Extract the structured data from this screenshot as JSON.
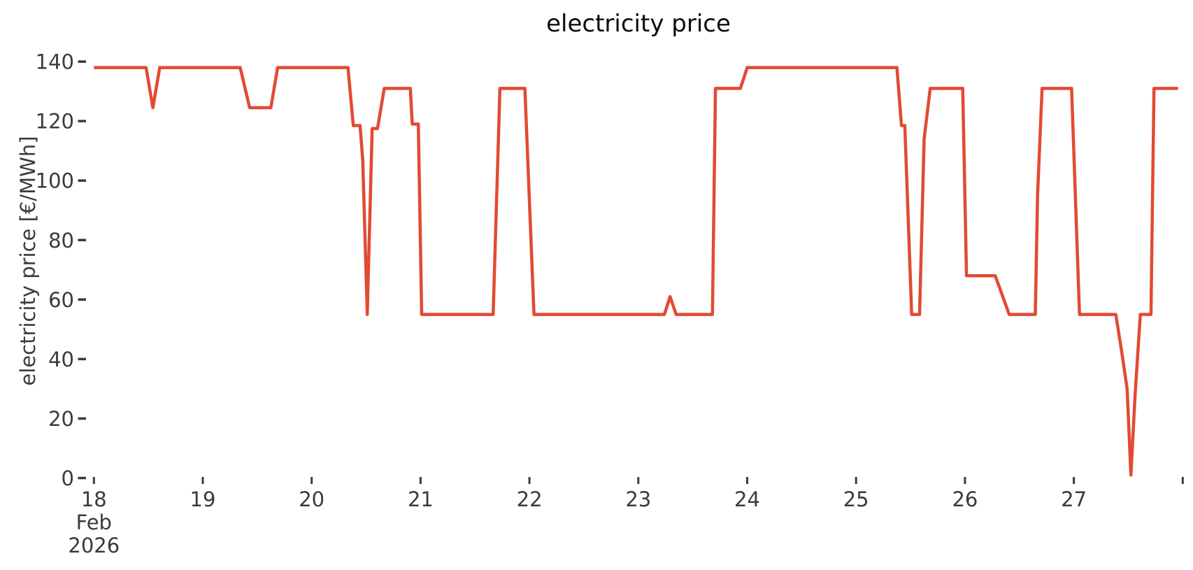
{
  "title": "electricity price",
  "y_axis": {
    "label": "electricity price [€/MWh]",
    "ticks": [
      0,
      20,
      40,
      60,
      80,
      100,
      120,
      140
    ]
  },
  "x_axis": {
    "ticks": [
      {
        "day": 0,
        "label": "18",
        "sub": [
          "Feb",
          "2026"
        ]
      },
      {
        "day": 1,
        "label": "19",
        "sub": []
      },
      {
        "day": 2,
        "label": "20",
        "sub": []
      },
      {
        "day": 3,
        "label": "21",
        "sub": []
      },
      {
        "day": 4,
        "label": "22",
        "sub": []
      },
      {
        "day": 5,
        "label": "23",
        "sub": []
      },
      {
        "day": 6,
        "label": "24",
        "sub": []
      },
      {
        "day": 7,
        "label": "25",
        "sub": []
      },
      {
        "day": 8,
        "label": "26",
        "sub": []
      },
      {
        "day": 9,
        "label": "27",
        "sub": []
      },
      {
        "day": 10,
        "label": "",
        "sub": []
      }
    ]
  },
  "colors": {
    "line": "#E24A33",
    "tick_text": "#3b3b3b",
    "title_text": "#0c0c0c",
    "background": "#ffffff"
  },
  "chart_data": {
    "type": "line",
    "title": "electricity price",
    "xlabel": "",
    "ylabel": "electricity price [€/MWh]",
    "ylim": [
      0,
      140
    ],
    "x_range": [
      "2026-02-18T00:00",
      "2026-02-28T00:00"
    ],
    "grid": false,
    "legend": "none",
    "line_color": "#E24A33",
    "points": [
      [
        "2026-02-18T00:00",
        138
      ],
      [
        "2026-02-18T11:30",
        138
      ],
      [
        "2026-02-18T13:00",
        124.5
      ],
      [
        "2026-02-18T14:30",
        138
      ],
      [
        "2026-02-19T08:15",
        138
      ],
      [
        "2026-02-19T10:20",
        124.5
      ],
      [
        "2026-02-19T15:00",
        124.5
      ],
      [
        "2026-02-19T16:30",
        138
      ],
      [
        "2026-02-20T08:00",
        138
      ],
      [
        "2026-02-20T09:10",
        118.5
      ],
      [
        "2026-02-20T10:40",
        118.5
      ],
      [
        "2026-02-20T11:15",
        107
      ],
      [
        "2026-02-20T12:15",
        55
      ],
      [
        "2026-02-20T13:20",
        117.5
      ],
      [
        "2026-02-20T14:30",
        117.5
      ],
      [
        "2026-02-20T16:00",
        131
      ],
      [
        "2026-02-20T21:45",
        131
      ],
      [
        "2026-02-20T22:10",
        119
      ],
      [
        "2026-02-20T23:30",
        119
      ],
      [
        "2026-02-21T00:15",
        55
      ],
      [
        "2026-02-21T16:00",
        55
      ],
      [
        "2026-02-21T17:30",
        131
      ],
      [
        "2026-02-21T23:00",
        131
      ],
      [
        "2026-02-22T01:00",
        55
      ],
      [
        "2026-02-23T05:45",
        55
      ],
      [
        "2026-02-23T07:00",
        61
      ],
      [
        "2026-02-23T08:20",
        55
      ],
      [
        "2026-02-23T16:20",
        55
      ],
      [
        "2026-02-23T17:00",
        131
      ],
      [
        "2026-02-23T22:30",
        131
      ],
      [
        "2026-02-24T00:00",
        138
      ],
      [
        "2026-02-25T09:00",
        138
      ],
      [
        "2026-02-25T10:00",
        118.5
      ],
      [
        "2026-02-25T10:45",
        118.5
      ],
      [
        "2026-02-25T12:15",
        55
      ],
      [
        "2026-02-25T14:00",
        55
      ],
      [
        "2026-02-25T15:00",
        114
      ],
      [
        "2026-02-25T16:20",
        131
      ],
      [
        "2026-02-25T23:30",
        131
      ],
      [
        "2026-02-26T00:20",
        68
      ],
      [
        "2026-02-26T06:40",
        68
      ],
      [
        "2026-02-26T09:45",
        55
      ],
      [
        "2026-02-26T15:30",
        55
      ],
      [
        "2026-02-26T16:00",
        95
      ],
      [
        "2026-02-26T17:00",
        131
      ],
      [
        "2026-02-26T23:30",
        131
      ],
      [
        "2026-02-27T01:15",
        55
      ],
      [
        "2026-02-27T09:15",
        55
      ],
      [
        "2026-02-27T10:30",
        43
      ],
      [
        "2026-02-27T11:45",
        30
      ],
      [
        "2026-02-27T12:35",
        1
      ],
      [
        "2026-02-27T13:30",
        28
      ],
      [
        "2026-02-27T14:40",
        55
      ],
      [
        "2026-02-27T17:00",
        55
      ],
      [
        "2026-02-27T17:40",
        131
      ],
      [
        "2026-02-27T23:00",
        131
      ]
    ]
  }
}
